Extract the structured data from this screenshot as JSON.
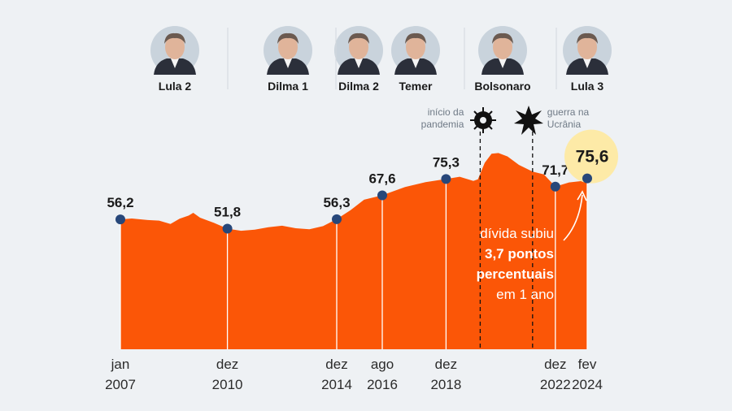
{
  "presidents": [
    {
      "name": "Lula 2"
    },
    {
      "name": "Dilma 1"
    },
    {
      "name": "Dilma 2"
    },
    {
      "name": "Temer"
    },
    {
      "name": "Bolsonaro"
    },
    {
      "name": "Lula 3"
    }
  ],
  "chart_data": {
    "type": "area",
    "color": "#fb5607",
    "marker_color": "#27477a",
    "highlight_color": "#f26522",
    "x": [
      "2007-01",
      "2007-06",
      "2008-01",
      "2008-06",
      "2008-11",
      "2009-03",
      "2009-07",
      "2009-09",
      "2009-12",
      "2010-06",
      "2010-12",
      "2011-06",
      "2011-12",
      "2012-06",
      "2012-12",
      "2013-06",
      "2013-12",
      "2014-06",
      "2014-12",
      "2015-06",
      "2015-12",
      "2016-08",
      "2017-06",
      "2018-03",
      "2018-12",
      "2019-06",
      "2019-12",
      "2020-02",
      "2020-05",
      "2020-08",
      "2020-11",
      "2021-03",
      "2021-08",
      "2022-02",
      "2022-07",
      "2022-12",
      "2023-06",
      "2023-12",
      "2024-02"
    ],
    "values": [
      56.2,
      56.6,
      55.9,
      55.6,
      54.0,
      56.5,
      58.0,
      59.3,
      57.0,
      54.6,
      51.8,
      50.8,
      51.3,
      52.5,
      53.2,
      52.0,
      51.5,
      53.0,
      56.3,
      60.5,
      65.5,
      67.6,
      71.5,
      73.8,
      75.3,
      76.4,
      74.4,
      75.2,
      83.0,
      87.3,
      87.6,
      86.0,
      82.0,
      78.8,
      77.5,
      71.7,
      73.7,
      74.4,
      75.6
    ],
    "value_labels": [
      "56,2",
      null,
      null,
      null,
      null,
      null,
      null,
      null,
      null,
      null,
      "51,8",
      null,
      null,
      null,
      null,
      null,
      null,
      null,
      "56,3",
      null,
      null,
      "67,6",
      null,
      null,
      "75,3",
      null,
      null,
      null,
      null,
      null,
      null,
      null,
      null,
      null,
      null,
      "71,7",
      null,
      null,
      "75,6"
    ],
    "xlim": [
      "2007-01",
      "2024-02"
    ],
    "xticks": [
      {
        "value": "2007-01",
        "label": "jan 2007"
      },
      {
        "value": "2010-12",
        "label": "dez 2010"
      },
      {
        "value": "2014-12",
        "label": "dez 2014"
      },
      {
        "value": "2016-08",
        "label": "ago 2016"
      },
      {
        "value": "2018-12",
        "label": "dez 2018"
      },
      {
        "value": "2022-12",
        "label": "dez 2022"
      },
      {
        "value": "2024-02",
        "label": "fev 2024"
      }
    ],
    "ylim": [
      -5.3,
      95
    ],
    "events": [
      {
        "x": "2020-03",
        "label": "início da pandemia"
      },
      {
        "x": "2022-02",
        "label": "guerra na Ucrânia"
      }
    ],
    "annotation": [
      "dívida subiu",
      "3,7 pontos",
      "percentuais",
      "em 1 ano"
    ]
  }
}
